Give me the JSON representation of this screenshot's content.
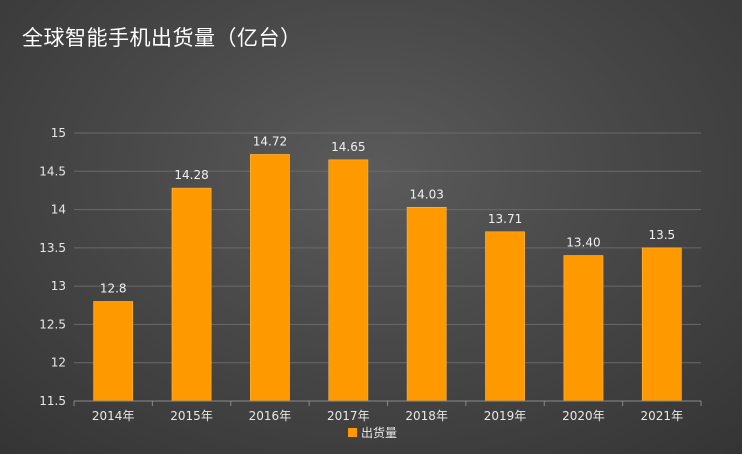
{
  "chart_data": {
    "type": "bar",
    "title": "全球智能手机出货量（亿台）",
    "categories": [
      "2014年",
      "2015年",
      "2016年",
      "2017年",
      "2018年",
      "2019年",
      "2020年",
      "2021年"
    ],
    "series": [
      {
        "name": "出货量",
        "values": [
          12.8,
          14.28,
          14.72,
          14.65,
          14.03,
          13.71,
          13.4,
          13.5
        ],
        "labels": [
          "12.8",
          "14.28",
          "14.72",
          "14.65",
          "14.03",
          "13.71",
          "13.40",
          "13.5"
        ]
      }
    ],
    "ylim": [
      11.5,
      15
    ],
    "yticks": [
      "11.5",
      "12",
      "12.5",
      "13",
      "13.5",
      "14",
      "14.5",
      "15"
    ],
    "grid": true,
    "legend_position": "bottom",
    "colors": {
      "bar": "#ff9900",
      "bar_edge": "#ffb84d",
      "grid": "#6a6a6a",
      "axis": "#8a8a8a"
    }
  }
}
